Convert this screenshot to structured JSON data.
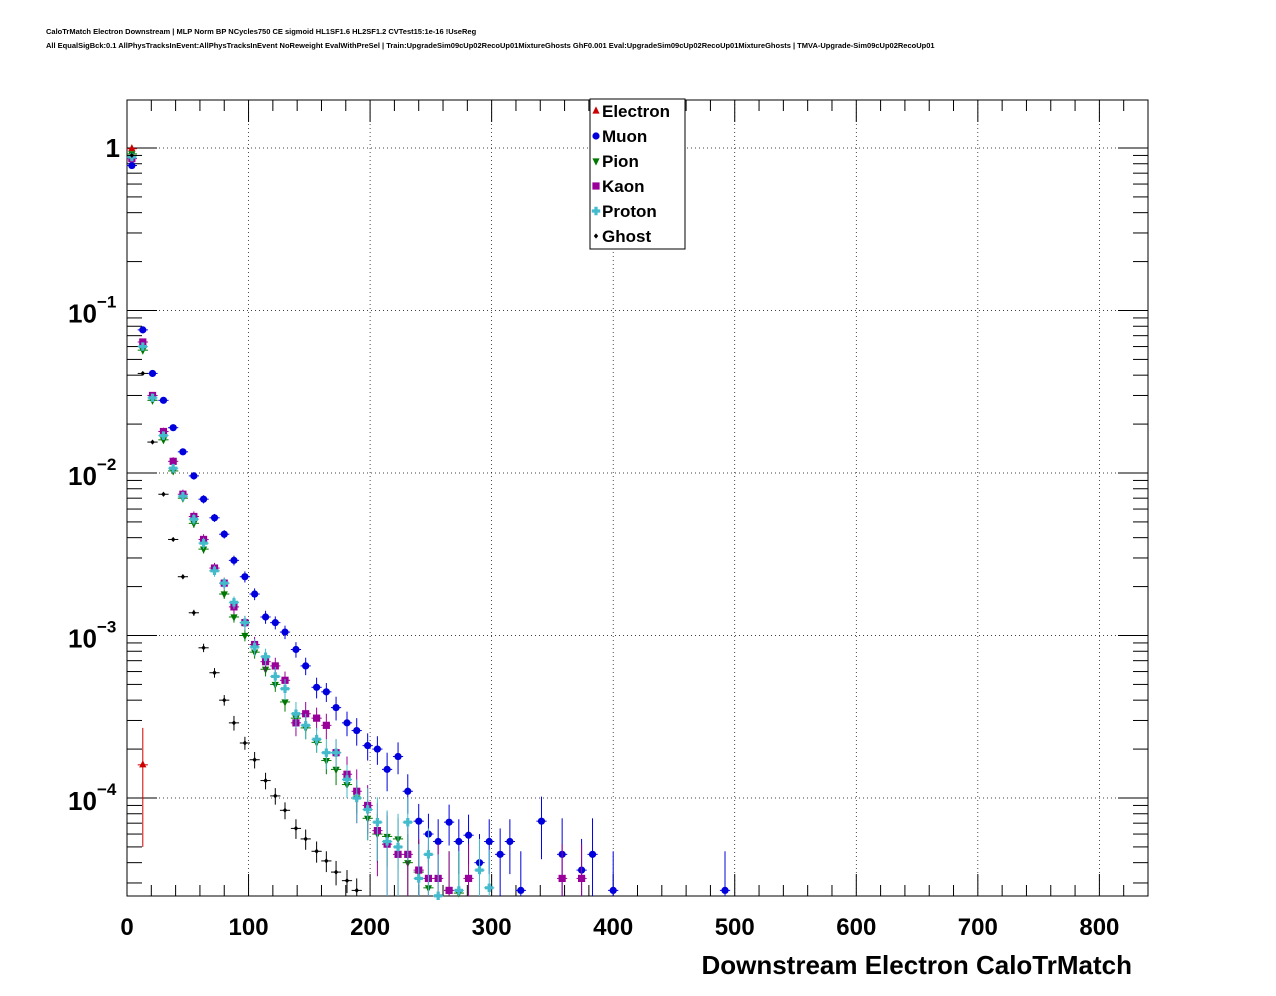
{
  "header": {
    "title_line1": "CaloTrMatch Electron Downstream | MLP Norm BP NCycles750 CE sigmoid HL1SF1.6 HL2SF1.2 CVTest15:1e-16 !UseReg",
    "title_line2": "All EqualSigBck:0.1 AllPhysTracksInEvent:AllPhysTracksInEvent NoReweight EvalWithPreSel | Train:UpgradeSim09cUp02RecoUp01MixtureGhosts GhF0.001 Eval:UpgradeSim09cUp02RecoUp01MixtureGhosts | TMVA-Upgrade-Sim09cUp02RecoUp01"
  },
  "chart_data": {
    "type": "scatter",
    "title": "",
    "xlabel": "Downstream Electron CaloTrMatch",
    "ylabel": "",
    "xlim": [
      0,
      840
    ],
    "ylim": [
      2.5e-05,
      2.0
    ],
    "yscale": "log",
    "grid": true,
    "legend_position": "top-center",
    "x_ticks": [
      "0",
      "100",
      "200",
      "300",
      "400",
      "500",
      "600",
      "700",
      "800"
    ],
    "y_ticks": [
      {
        "base": "1",
        "exp": ""
      },
      {
        "base": "10",
        "exp": "−1"
      },
      {
        "base": "10",
        "exp": "−2"
      },
      {
        "base": "10",
        "exp": "−3"
      },
      {
        "base": "10",
        "exp": "−4"
      }
    ],
    "bin_width": 8.4,
    "series": [
      {
        "name": "Electron",
        "color": "#cc0000",
        "marker": "triangle-up",
        "points": [
          [
            4,
            0.99,
            0.002
          ],
          [
            13,
            0.00016,
            0.00011
          ]
        ]
      },
      {
        "name": "Muon",
        "color": "#0000dd",
        "marker": "circle",
        "points": [
          [
            4,
            0.78,
            0.01
          ],
          [
            13,
            0.076,
            0.003
          ],
          [
            21,
            0.041,
            0.0015
          ],
          [
            30,
            0.028,
            0.001
          ],
          [
            38,
            0.019,
            0.0008
          ],
          [
            46,
            0.0135,
            0.0006
          ],
          [
            55,
            0.0096,
            0.0005
          ],
          [
            63,
            0.0069,
            0.0004
          ],
          [
            72,
            0.0053,
            0.0003
          ],
          [
            80,
            0.0042,
            0.00025
          ],
          [
            88,
            0.0029,
            0.0002
          ],
          [
            97,
            0.0023,
            0.00018
          ],
          [
            105,
            0.0018,
            0.00015
          ],
          [
            114,
            0.0013,
            0.00012
          ],
          [
            122,
            0.0012,
            0.00011
          ],
          [
            130,
            0.00105,
            0.0001
          ],
          [
            139,
            0.00082,
            9e-05
          ],
          [
            147,
            0.00065,
            8e-05
          ],
          [
            156,
            0.00048,
            7e-05
          ],
          [
            164,
            0.00045,
            6e-05
          ],
          [
            172,
            0.00036,
            6e-05
          ],
          [
            181,
            0.00029,
            5e-05
          ],
          [
            189,
            0.00026,
            5e-05
          ],
          [
            198,
            0.00021,
            4e-05
          ],
          [
            206,
            0.0002,
            4e-05
          ],
          [
            214,
            0.00015,
            4e-05
          ],
          [
            223,
            0.00018,
            4e-05
          ],
          [
            231,
            0.00011,
            3e-05
          ],
          [
            240,
            7.2e-05,
            2e-05
          ],
          [
            248,
            6e-05,
            2e-05
          ],
          [
            256,
            5.4e-05,
            2e-05
          ],
          [
            265,
            7.1e-05,
            2e-05
          ],
          [
            273,
            5.4e-05,
            2e-05
          ],
          [
            281,
            5.9e-05,
            2e-05
          ],
          [
            290,
            4e-05,
            2e-05
          ],
          [
            298,
            5.4e-05,
            2e-05
          ],
          [
            307,
            4.5e-05,
            2e-05
          ],
          [
            315,
            5.4e-05,
            2e-05
          ],
          [
            324,
            2.7e-05,
            2e-05
          ],
          [
            341,
            7.2e-05,
            3e-05
          ],
          [
            358,
            4.5e-05,
            3e-05
          ],
          [
            374,
            3.6e-05,
            2e-05
          ],
          [
            383,
            4.5e-05,
            3e-05
          ],
          [
            400,
            2.7e-05,
            2e-05
          ],
          [
            492,
            2.7e-05,
            2e-05
          ]
        ]
      },
      {
        "name": "Pion",
        "color": "#007700",
        "marker": "triangle-down",
        "points": [
          [
            4,
            0.92,
            0.005
          ],
          [
            13,
            0.057,
            0.002
          ],
          [
            21,
            0.028,
            0.001
          ],
          [
            30,
            0.016,
            0.0007
          ],
          [
            38,
            0.0103,
            0.0005
          ],
          [
            46,
            0.007,
            0.0003
          ],
          [
            55,
            0.0049,
            0.0003
          ],
          [
            63,
            0.0034,
            0.0002
          ],
          [
            72,
            0.0025,
            0.00015
          ],
          [
            80,
            0.0018,
            0.00012
          ],
          [
            88,
            0.0013,
            0.0001
          ],
          [
            97,
            0.001,
            8e-05
          ],
          [
            105,
            0.00079,
            7e-05
          ],
          [
            114,
            0.00062,
            6e-05
          ],
          [
            122,
            0.0005,
            5e-05
          ],
          [
            130,
            0.00039,
            5e-05
          ],
          [
            139,
            0.00031,
            4e-05
          ],
          [
            147,
            0.00027,
            4e-05
          ],
          [
            156,
            0.00022,
            3e-05
          ],
          [
            164,
            0.00017,
            3e-05
          ],
          [
            172,
            0.00015,
            3e-05
          ],
          [
            181,
            0.000121,
            2e-05
          ],
          [
            189,
            0.0001,
            2e-05
          ],
          [
            198,
            7.5e-05,
            2e-05
          ],
          [
            206,
            6e-05,
            2e-05
          ],
          [
            214,
            5.8e-05,
            2e-05
          ],
          [
            223,
            5.6e-05,
            2e-05
          ],
          [
            231,
            4e-05,
            2e-05
          ],
          [
            240,
            3.5e-05,
            2e-05
          ],
          [
            248,
            2.8e-05,
            2e-05
          ],
          [
            265,
            2.7e-05,
            2e-05
          ],
          [
            273,
            2.6e-05,
            2e-05
          ]
        ]
      },
      {
        "name": "Kaon",
        "color": "#990099",
        "marker": "square",
        "points": [
          [
            4,
            0.86,
            0.01
          ],
          [
            13,
            0.064,
            0.003
          ],
          [
            21,
            0.03,
            0.0015
          ],
          [
            30,
            0.018,
            0.001
          ],
          [
            38,
            0.0118,
            0.0007
          ],
          [
            46,
            0.0074,
            0.0005
          ],
          [
            55,
            0.0054,
            0.0004
          ],
          [
            63,
            0.0039,
            0.0003
          ],
          [
            72,
            0.0026,
            0.0002
          ],
          [
            80,
            0.0021,
            0.00017
          ],
          [
            88,
            0.0015,
            0.00014
          ],
          [
            97,
            0.0012,
            0.00012
          ],
          [
            105,
            0.00088,
            0.0001
          ],
          [
            114,
            0.00069,
            9e-05
          ],
          [
            122,
            0.00065,
            8e-05
          ],
          [
            130,
            0.00053,
            7e-05
          ],
          [
            139,
            0.00029,
            5e-05
          ],
          [
            147,
            0.00033,
            6e-05
          ],
          [
            156,
            0.00031,
            5e-05
          ],
          [
            164,
            0.00028,
            5e-05
          ],
          [
            172,
            0.00019,
            4e-05
          ],
          [
            181,
            0.00014,
            4e-05
          ],
          [
            189,
            0.00011,
            4e-05
          ],
          [
            198,
            9e-05,
            3e-05
          ],
          [
            206,
            6.3e-05,
            3e-05
          ],
          [
            214,
            5.2e-05,
            3e-05
          ],
          [
            223,
            4.5e-05,
            3e-05
          ],
          [
            231,
            4.5e-05,
            3e-05
          ],
          [
            240,
            3.6e-05,
            2e-05
          ],
          [
            248,
            3.2e-05,
            2e-05
          ],
          [
            256,
            3.2e-05,
            2e-05
          ],
          [
            265,
            2.7e-05,
            2e-05
          ],
          [
            281,
            3.2e-05,
            2e-05
          ],
          [
            358,
            3.2e-05,
            2e-05
          ],
          [
            374,
            3.2e-05,
            2e-05
          ]
        ]
      },
      {
        "name": "Proton",
        "color": "#44bbcc",
        "marker": "cross",
        "points": [
          [
            4,
            0.88,
            0.01
          ],
          [
            13,
            0.06,
            0.003
          ],
          [
            21,
            0.029,
            0.0015
          ],
          [
            30,
            0.017,
            0.001
          ],
          [
            38,
            0.0107,
            0.0007
          ],
          [
            46,
            0.0072,
            0.0005
          ],
          [
            55,
            0.0052,
            0.0004
          ],
          [
            63,
            0.0037,
            0.0003
          ],
          [
            72,
            0.0025,
            0.0002
          ],
          [
            80,
            0.0021,
            0.00017
          ],
          [
            88,
            0.0016,
            0.00014
          ],
          [
            97,
            0.0012,
            0.00012
          ],
          [
            105,
            0.00085,
            0.0001
          ],
          [
            114,
            0.00074,
            9e-05
          ],
          [
            122,
            0.00056,
            8e-05
          ],
          [
            130,
            0.00047,
            7e-05
          ],
          [
            139,
            0.00033,
            6e-05
          ],
          [
            147,
            0.00028,
            5e-05
          ],
          [
            156,
            0.00023,
            4e-05
          ],
          [
            164,
            0.00019,
            4e-05
          ],
          [
            172,
            0.00019,
            4e-05
          ],
          [
            181,
            0.00013,
            3e-05
          ],
          [
            189,
            0.0001,
            3e-05
          ],
          [
            198,
            8.5e-05,
            3e-05
          ],
          [
            206,
            7.1e-05,
            3e-05
          ],
          [
            214,
            5.4e-05,
            3e-05
          ],
          [
            223,
            5e-05,
            3e-05
          ],
          [
            231,
            7.1e-05,
            3e-05
          ],
          [
            240,
            3.2e-05,
            2e-05
          ],
          [
            248,
            4.5e-05,
            2e-05
          ],
          [
            256,
            2.5e-05,
            2e-05
          ],
          [
            273,
            2.7e-05,
            2e-05
          ],
          [
            290,
            3.6e-05,
            2e-05
          ],
          [
            298,
            2.8e-05,
            2e-05
          ]
        ]
      },
      {
        "name": "Ghost",
        "color": "#000000",
        "marker": "diamond",
        "points": [
          [
            4,
            0.9,
            0.003
          ],
          [
            13,
            0.041,
            0.0005
          ],
          [
            21,
            0.0155,
            0.0003
          ],
          [
            30,
            0.0074,
            0.0002
          ],
          [
            38,
            0.0039,
            0.0001
          ],
          [
            46,
            0.0023,
            8e-05
          ],
          [
            55,
            0.00138,
            6e-05
          ],
          [
            63,
            0.00084,
            5e-05
          ],
          [
            72,
            0.00059,
            4e-05
          ],
          [
            80,
            0.0004,
            3e-05
          ],
          [
            88,
            0.00029,
            3e-05
          ],
          [
            97,
            0.000218,
            2e-05
          ],
          [
            105,
            0.000172,
            2e-05
          ],
          [
            114,
            0.000128,
            1.5e-05
          ],
          [
            122,
            0.000103,
            1.2e-05
          ],
          [
            130,
            8.4e-05,
            1e-05
          ],
          [
            139,
            6.5e-05,
            9e-06
          ],
          [
            147,
            5.6e-05,
            8e-06
          ],
          [
            156,
            4.7e-05,
            7e-06
          ],
          [
            164,
            4.1e-05,
            6e-06
          ],
          [
            172,
            3.5e-05,
            6e-06
          ],
          [
            181,
            3.1e-05,
            5e-06
          ],
          [
            189,
            2.7e-05,
            5e-06
          ]
        ]
      }
    ]
  }
}
